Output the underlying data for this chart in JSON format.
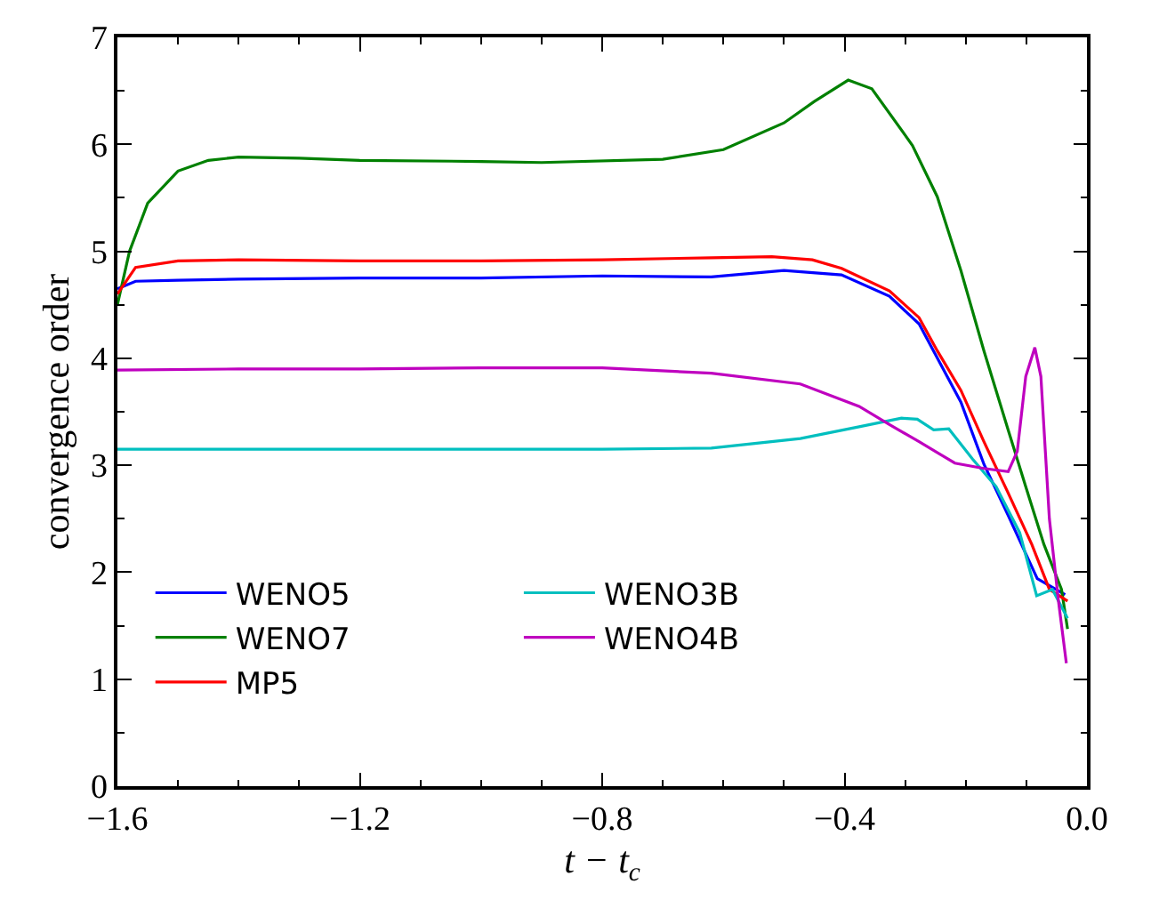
{
  "chart_data": {
    "type": "line",
    "xlabel": "t − t$_{c}$",
    "ylabel": "convergence order",
    "xlim": [
      -1.6,
      0.0
    ],
    "ylim": [
      0,
      7
    ],
    "xticks": [
      {
        "value": -1.6,
        "label": "−1.6"
      },
      {
        "value": -1.5,
        "label": null
      },
      {
        "value": -1.4,
        "label": null
      },
      {
        "value": -1.3,
        "label": null
      },
      {
        "value": -1.2,
        "label": "−1.2"
      },
      {
        "value": -1.1,
        "label": null
      },
      {
        "value": -1.0,
        "label": null
      },
      {
        "value": -0.9,
        "label": null
      },
      {
        "value": -0.8,
        "label": "−0.8"
      },
      {
        "value": -0.7,
        "label": null
      },
      {
        "value": -0.6,
        "label": null
      },
      {
        "value": -0.5,
        "label": null
      },
      {
        "value": -0.4,
        "label": "−0.4"
      },
      {
        "value": -0.3,
        "label": null
      },
      {
        "value": -0.2,
        "label": null
      },
      {
        "value": -0.1,
        "label": null
      },
      {
        "value": 0.0,
        "label": "0.0"
      }
    ],
    "yticks": [
      0,
      {
        "value": 0.5,
        "label": null
      },
      1,
      {
        "value": 1.5,
        "label": null
      },
      2,
      {
        "value": 2.5,
        "label": null
      },
      3,
      {
        "value": 3.5,
        "label": null
      },
      4,
      {
        "value": 4.5,
        "label": null
      },
      5,
      {
        "value": 5.5,
        "label": null
      },
      6,
      {
        "value": 6.5,
        "label": null
      },
      7
    ],
    "legend": "bottom left",
    "marker": "none",
    "line_style": "solid",
    "series": [
      {
        "name": "WENO5",
        "color": "#0000ff",
        "x": [
          -1.6,
          -1.57,
          -1.5,
          -1.4,
          -1.2,
          -1.0,
          -0.8,
          -0.62,
          -0.5,
          -0.405,
          -0.326,
          -0.277,
          -0.208,
          -0.17,
          -0.13,
          -0.082,
          -0.036
        ],
        "values": [
          4.65,
          4.72,
          4.73,
          4.74,
          4.75,
          4.75,
          4.77,
          4.76,
          4.82,
          4.78,
          4.58,
          4.32,
          3.59,
          3.01,
          2.53,
          1.94,
          1.79
        ]
      },
      {
        "name": "WENO7",
        "color": "#008000",
        "x": [
          -1.6,
          -1.58,
          -1.55,
          -1.5,
          -1.45,
          -1.4,
          -1.3,
          -1.2,
          -1.0,
          -0.9,
          -0.7,
          -0.6,
          -0.5,
          -0.45,
          -0.394,
          -0.355,
          -0.288,
          -0.247,
          -0.208,
          -0.17,
          -0.13,
          -0.101,
          -0.071,
          -0.042,
          -0.032
        ],
        "values": [
          4.5,
          5.0,
          5.45,
          5.75,
          5.85,
          5.88,
          5.87,
          5.85,
          5.84,
          5.83,
          5.86,
          5.95,
          6.2,
          6.4,
          6.6,
          6.52,
          5.99,
          5.51,
          4.82,
          4.07,
          3.33,
          2.8,
          2.26,
          1.84,
          1.47
        ]
      },
      {
        "name": "MP5",
        "color": "#ff0000",
        "x": [
          -1.6,
          -1.57,
          -1.5,
          -1.4,
          -1.2,
          -1.0,
          -0.8,
          -0.62,
          -0.52,
          -0.453,
          -0.405,
          -0.326,
          -0.277,
          -0.247,
          -0.208,
          -0.17,
          -0.13,
          -0.091,
          -0.062,
          -0.032
        ],
        "values": [
          4.6,
          4.85,
          4.91,
          4.92,
          4.91,
          4.91,
          4.92,
          4.94,
          4.95,
          4.92,
          4.84,
          4.63,
          4.38,
          4.07,
          3.7,
          3.22,
          2.74,
          2.26,
          1.84,
          1.73
        ]
      },
      {
        "name": "WENO3B",
        "color": "#00bfbf",
        "x": [
          -1.6,
          -1.2,
          -0.8,
          -0.62,
          -0.473,
          -0.376,
          -0.306,
          -0.28,
          -0.253,
          -0.228,
          -0.189,
          -0.15,
          -0.111,
          -0.083,
          -0.057,
          -0.032
        ],
        "values": [
          3.15,
          3.15,
          3.15,
          3.16,
          3.25,
          3.36,
          3.44,
          3.43,
          3.33,
          3.34,
          3.06,
          2.8,
          2.37,
          1.78,
          1.84,
          1.57
        ]
      },
      {
        "name": "WENO4B",
        "color": "#bf00bf",
        "x": [
          -1.6,
          -1.4,
          -1.2,
          -1.0,
          -0.8,
          -0.62,
          -0.473,
          -0.376,
          -0.326,
          -0.277,
          -0.218,
          -0.17,
          -0.13,
          -0.115,
          -0.101,
          -0.086,
          -0.076,
          -0.062,
          -0.047,
          -0.034
        ],
        "values": [
          3.89,
          3.9,
          3.9,
          3.91,
          3.91,
          3.86,
          3.76,
          3.55,
          3.38,
          3.22,
          3.02,
          2.97,
          2.94,
          3.13,
          3.83,
          4.1,
          3.83,
          2.5,
          1.73,
          1.15
        ]
      }
    ]
  }
}
